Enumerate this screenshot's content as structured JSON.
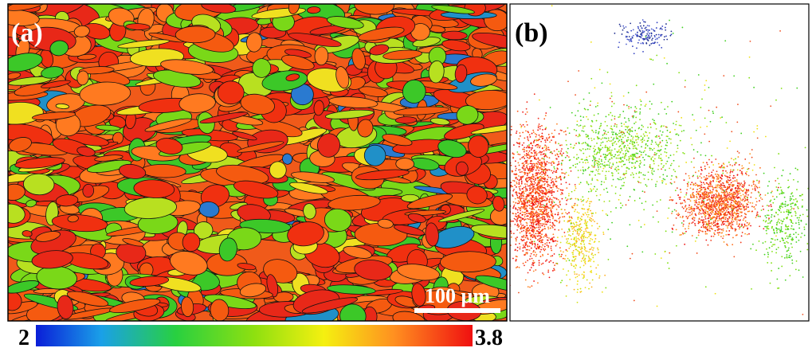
{
  "panels": [
    {
      "label": "(a)",
      "scale_bar": "100 μm"
    },
    {
      "label": "(b)"
    }
  ],
  "colorbar": {
    "min": 2,
    "max": 3.8
  }
}
